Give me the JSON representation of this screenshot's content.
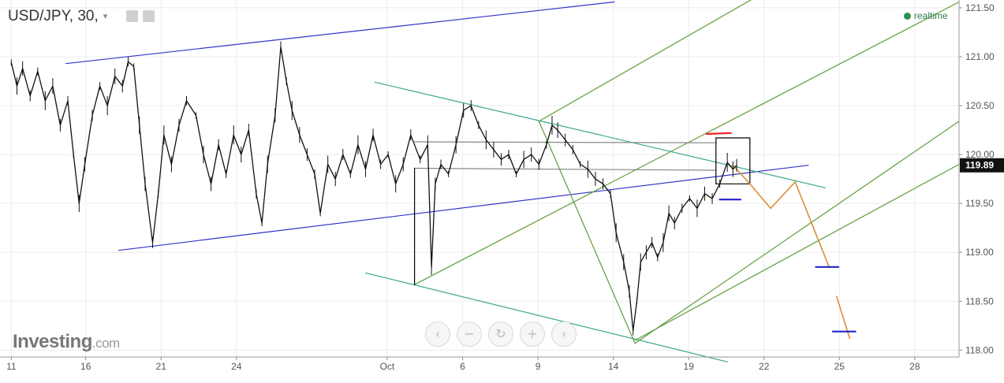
{
  "header": {
    "title": "USD/JPY, 30,",
    "dropdown_glyph": "▾",
    "icons": [
      "eye-icon",
      "gear-icon"
    ]
  },
  "status": {
    "realtime": "realtime",
    "color": "#2f8f57"
  },
  "logo": {
    "brand": "Investing",
    "suffix": ".com"
  },
  "zoom_controls": [
    {
      "name": "scroll-left-button",
      "glyph": "‹"
    },
    {
      "name": "zoom-out-button",
      "glyph": "−"
    },
    {
      "name": "reset-button",
      "glyph": "↻"
    },
    {
      "name": "zoom-in-button",
      "glyph": "+"
    },
    {
      "name": "scroll-right-button",
      "glyph": "›"
    }
  ],
  "chart_data": {
    "type": "line",
    "series": [
      {
        "values": [
          [
            0.0,
            120.94
          ],
          [
            0.3,
            120.7
          ],
          [
            0.6,
            120.88
          ],
          [
            1.0,
            120.6
          ],
          [
            1.4,
            120.85
          ],
          [
            1.8,
            120.55
          ],
          [
            2.2,
            120.7
          ],
          [
            2.6,
            120.3
          ],
          [
            3.0,
            120.55
          ],
          [
            3.3,
            120.0
          ],
          [
            3.6,
            119.5
          ],
          [
            3.9,
            119.9
          ],
          [
            4.3,
            120.4
          ],
          [
            4.7,
            120.7
          ],
          [
            5.1,
            120.5
          ],
          [
            5.5,
            120.8
          ],
          [
            5.9,
            120.7
          ],
          [
            6.2,
            120.95
          ],
          [
            6.5,
            120.9
          ],
          [
            6.8,
            120.3
          ],
          [
            7.1,
            119.7
          ],
          [
            7.5,
            119.1
          ],
          [
            7.8,
            119.6
          ],
          [
            8.1,
            120.2
          ],
          [
            8.5,
            119.9
          ],
          [
            8.9,
            120.3
          ],
          [
            9.3,
            120.55
          ],
          [
            9.8,
            120.4
          ],
          [
            10.2,
            120.0
          ],
          [
            10.6,
            119.7
          ],
          [
            11.0,
            120.1
          ],
          [
            11.4,
            119.8
          ],
          [
            11.8,
            120.2
          ],
          [
            12.2,
            120.0
          ],
          [
            12.6,
            120.25
          ],
          [
            13.0,
            119.6
          ],
          [
            13.3,
            119.3
          ],
          [
            13.6,
            119.9
          ],
          [
            14.0,
            120.4
          ],
          [
            14.3,
            121.1
          ],
          [
            14.6,
            120.75
          ],
          [
            14.9,
            120.45
          ],
          [
            15.3,
            120.2
          ],
          [
            15.7,
            120.0
          ],
          [
            16.1,
            119.8
          ],
          [
            16.4,
            119.4
          ],
          [
            16.8,
            119.9
          ],
          [
            17.2,
            119.75
          ],
          [
            17.6,
            120.0
          ],
          [
            18.0,
            119.8
          ],
          [
            18.4,
            120.1
          ],
          [
            18.8,
            119.85
          ],
          [
            19.2,
            120.2
          ],
          [
            19.6,
            119.9
          ],
          [
            20.0,
            120.0
          ],
          [
            20.4,
            119.7
          ],
          [
            20.8,
            119.9
          ],
          [
            21.2,
            120.2
          ],
          [
            21.7,
            119.95
          ],
          [
            22.1,
            120.1
          ],
          [
            22.3,
            118.85
          ],
          [
            22.5,
            119.7
          ],
          [
            22.8,
            119.9
          ],
          [
            23.2,
            119.8
          ],
          [
            23.6,
            120.1
          ],
          [
            24.0,
            120.45
          ],
          [
            24.4,
            120.5
          ],
          [
            24.8,
            120.3
          ],
          [
            25.2,
            120.15
          ],
          [
            25.6,
            120.05
          ],
          [
            26.0,
            119.95
          ],
          [
            26.4,
            120.0
          ],
          [
            26.8,
            119.8
          ],
          [
            27.2,
            119.95
          ],
          [
            27.6,
            120.0
          ],
          [
            28.0,
            119.9
          ],
          [
            28.4,
            120.1
          ],
          [
            28.7,
            120.3
          ],
          [
            29.0,
            120.25
          ],
          [
            29.4,
            120.15
          ],
          [
            29.8,
            120.05
          ],
          [
            30.2,
            119.9
          ],
          [
            30.6,
            119.85
          ],
          [
            31.0,
            119.75
          ],
          [
            31.4,
            119.7
          ],
          [
            31.8,
            119.6
          ],
          [
            32.1,
            119.2
          ],
          [
            32.5,
            118.9
          ],
          [
            32.8,
            118.6
          ],
          [
            33.0,
            118.2
          ],
          [
            33.2,
            118.5
          ],
          [
            33.4,
            118.9
          ],
          [
            33.7,
            119.0
          ],
          [
            34.0,
            119.1
          ],
          [
            34.3,
            118.95
          ],
          [
            34.6,
            119.1
          ],
          [
            34.9,
            119.4
          ],
          [
            35.2,
            119.3
          ],
          [
            35.6,
            119.45
          ],
          [
            36.0,
            119.55
          ],
          [
            36.4,
            119.45
          ],
          [
            36.8,
            119.6
          ],
          [
            37.2,
            119.55
          ],
          [
            37.6,
            119.7
          ],
          [
            38.0,
            119.92
          ],
          [
            38.3,
            119.85
          ],
          [
            38.5,
            119.89
          ]
        ]
      }
    ],
    "x_ticks": [
      {
        "label": "11",
        "x": 0.0
      },
      {
        "label": "16",
        "x": 3.95
      },
      {
        "label": "21",
        "x": 7.95
      },
      {
        "label": "24",
        "x": 11.95
      },
      {
        "label": "Oct",
        "x": 19.95
      },
      {
        "label": "6",
        "x": 23.95
      },
      {
        "label": "9",
        "x": 27.95
      },
      {
        "label": "14",
        "x": 31.95
      },
      {
        "label": "19",
        "x": 35.95
      },
      {
        "label": "22",
        "x": 39.95
      },
      {
        "label": "25",
        "x": 43.95
      },
      {
        "label": "28",
        "x": 47.95
      }
    ],
    "xlim": [
      -0.6,
      50.3
    ],
    "y_ticks": [
      "121.50",
      "121.00",
      "120.50",
      "120.00",
      "119.50",
      "119.00",
      "118.50",
      "118.00"
    ],
    "ylim": [
      117.93,
      121.58
    ],
    "last_price": "119.89",
    "grid": true,
    "drawings": [
      {
        "kind": "line",
        "color": "#3333cc",
        "points": [
          [
            2.9,
            120.93
          ],
          [
            32.0,
            121.56
          ]
        ]
      },
      {
        "kind": "line",
        "color": "#3333cc",
        "points": [
          [
            5.7,
            119.02
          ],
          [
            42.3,
            119.89
          ]
        ]
      },
      {
        "kind": "line",
        "color": "#3aa889",
        "points": [
          [
            19.3,
            120.74
          ],
          [
            43.2,
            119.66
          ]
        ]
      },
      {
        "kind": "line",
        "color": "#3aa889",
        "points": [
          [
            18.8,
            118.79
          ],
          [
            38.0,
            117.88
          ]
        ]
      },
      {
        "kind": "line",
        "color": "#5c9c3a",
        "points": [
          [
            21.4,
            118.67
          ],
          [
            50.3,
            121.56
          ]
        ]
      },
      {
        "kind": "line",
        "color": "#5c9c3a",
        "points": [
          [
            33.1,
            118.1
          ],
          [
            50.3,
            119.9
          ]
        ]
      },
      {
        "kind": "line",
        "color": "#5c9c3a",
        "points": [
          [
            28.0,
            120.34
          ],
          [
            50.3,
            122.8
          ]
        ]
      },
      {
        "kind": "line",
        "color": "#5c9c3a",
        "points": [
          [
            33.1,
            118.07
          ],
          [
            50.3,
            120.34
          ]
        ]
      },
      {
        "kind": "line",
        "color": "#5c9c3a",
        "points": [
          [
            28.0,
            120.34
          ],
          [
            33.1,
            118.07
          ]
        ]
      },
      {
        "kind": "line",
        "color": "#888888",
        "points": [
          [
            21.4,
            120.13
          ],
          [
            37.4,
            120.12
          ]
        ]
      },
      {
        "kind": "line",
        "color": "#888888",
        "points": [
          [
            21.4,
            119.86
          ],
          [
            37.4,
            119.84
          ]
        ]
      },
      {
        "kind": "line",
        "color": "#000000",
        "points": [
          [
            21.4,
            118.67
          ],
          [
            21.4,
            119.86
          ]
        ]
      },
      {
        "kind": "line",
        "color": "#000000",
        "points": [
          [
            37.4,
            120.17
          ],
          [
            39.2,
            120.17
          ]
        ]
      },
      {
        "kind": "line",
        "color": "#000000",
        "points": [
          [
            39.2,
            120.17
          ],
          [
            39.2,
            119.7
          ]
        ]
      },
      {
        "kind": "line",
        "color": "#000000",
        "points": [
          [
            37.4,
            119.7
          ],
          [
            39.2,
            119.7
          ]
        ]
      },
      {
        "kind": "line",
        "color": "#000000",
        "points": [
          [
            37.4,
            119.7
          ],
          [
            37.4,
            120.17
          ]
        ]
      },
      {
        "kind": "line",
        "color": "#d98f3a",
        "points": [
          [
            38.3,
            119.89
          ],
          [
            39.2,
            119.7
          ],
          [
            40.3,
            119.45
          ],
          [
            41.6,
            119.72
          ],
          [
            43.4,
            118.85
          ]
        ]
      },
      {
        "kind": "line",
        "color": "#d98f3a",
        "points": [
          [
            43.8,
            118.55
          ],
          [
            44.5,
            118.12
          ]
        ]
      },
      {
        "kind": "line",
        "color": "#ee2222",
        "points": [
          [
            36.9,
            120.21
          ],
          [
            38.2,
            120.22
          ]
        ]
      },
      {
        "kind": "line",
        "color": "#2222cc",
        "points": [
          [
            37.6,
            119.54
          ],
          [
            38.7,
            119.54
          ]
        ]
      },
      {
        "kind": "line",
        "color": "#2222cc",
        "points": [
          [
            42.7,
            118.85
          ],
          [
            43.9,
            118.85
          ]
        ]
      },
      {
        "kind": "line",
        "color": "#2222cc",
        "points": [
          [
            43.6,
            118.19
          ],
          [
            44.8,
            118.19
          ]
        ]
      }
    ]
  }
}
